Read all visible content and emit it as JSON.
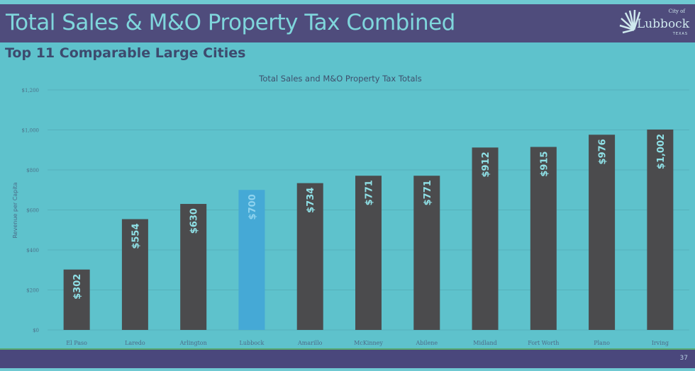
{
  "slide": {
    "title": "Total Sales & M&O Property Tax Combined",
    "subtitle": "Top 11 Comparable Large Cities",
    "page_number": "37",
    "logo": {
      "text": "Lubbock",
      "small": "City of",
      "state": "TEXAS"
    }
  },
  "colors": {
    "header": "#4f4c7c",
    "background": "#5ec2cc",
    "bar": "#4b4b4d",
    "highlight_bar": "#45a9d6"
  },
  "chart_data": {
    "type": "bar",
    "title": "Total Sales and M&O Property Tax Totals",
    "ylabel": "Revenue per Capita",
    "xlabel": "",
    "ylim": [
      0,
      1200
    ],
    "yticks": [
      "$0",
      "$200",
      "$400",
      "$600",
      "$800",
      "$1,000",
      "$1,200"
    ],
    "ytick_values": [
      0,
      200,
      400,
      600,
      800,
      1000,
      1200
    ],
    "grid": true,
    "categories": [
      "El Paso",
      "Laredo",
      "Arlington",
      "Lubbock",
      "Amarillo",
      "McKinney",
      "Abilene",
      "Midland",
      "Fort Worth",
      "Plano",
      "Irving"
    ],
    "values": [
      302,
      554,
      630,
      700,
      734,
      771,
      771,
      912,
      915,
      976,
      1002
    ],
    "data_labels": [
      "$302",
      "$554",
      "$630",
      "$700",
      "$734",
      "$771",
      "$771",
      "$912",
      "$915",
      "$976",
      "$1,002"
    ],
    "highlight": "Lubbock"
  }
}
